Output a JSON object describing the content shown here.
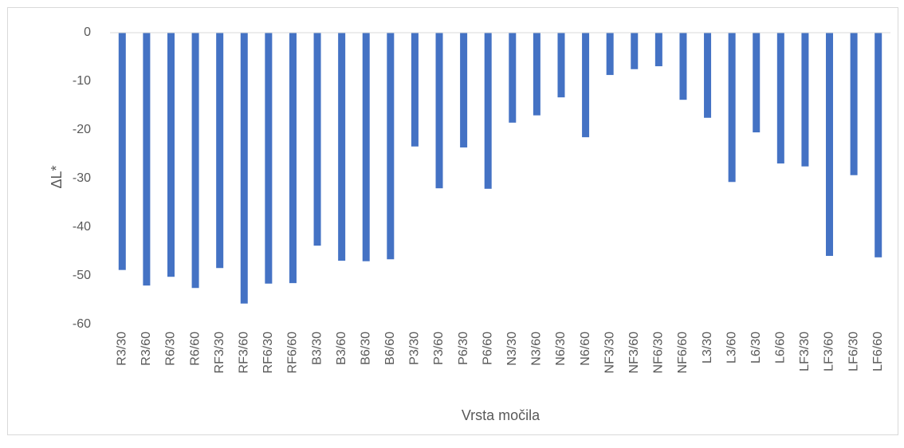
{
  "chart_data": {
    "type": "bar",
    "x_label": "Vrsta močila",
    "y_label": "ΔL*",
    "categories": [
      "R3/30",
      "R3/60",
      "R6/30",
      "R6/60",
      "RF3/30",
      "RF3/60",
      "RF6/30",
      "RF6/60",
      "B3/30",
      "B3/60",
      "B6/30",
      "B6/60",
      "P3/30",
      "P3/60",
      "P6/30",
      "P6/60",
      "N3/30",
      "N3/60",
      "N6/30",
      "N6/60",
      "NF3/30",
      "NF3/60",
      "NF6/30",
      "NF6/60",
      "L3/30",
      "L3/60",
      "L6/30",
      "L6/60",
      "LF3/30",
      "LF3/60",
      "LF6/30",
      "LF6/60"
    ],
    "values": [
      -48.8,
      -52.0,
      -50.2,
      -52.5,
      -48.4,
      -55.7,
      -51.6,
      -51.5,
      -43.8,
      -46.9,
      -47.0,
      -46.6,
      -23.4,
      -32.0,
      -23.6,
      -32.1,
      -18.5,
      -17.0,
      -13.3,
      -21.5,
      -8.7,
      -7.5,
      -6.9,
      -13.8,
      -17.5,
      -30.7,
      -20.5,
      -26.9,
      -27.5,
      -45.9,
      -29.3,
      -46.2
    ],
    "color": "#4472c4",
    "ylim": [
      -60,
      0
    ],
    "yticks": [
      0,
      -10,
      -20,
      -30,
      -40,
      -50,
      -60
    ],
    "grid": false
  }
}
